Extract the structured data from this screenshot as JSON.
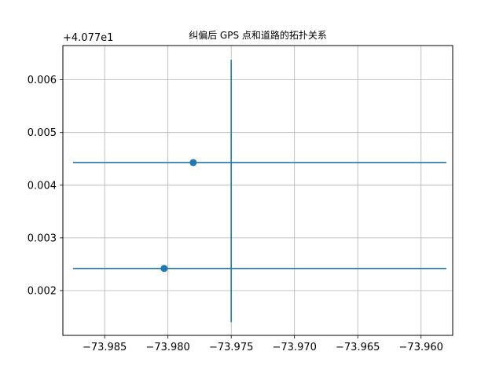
{
  "chart_data": {
    "type": "scatter",
    "title": "纠偏后 GPS 点和道路的拓扑关系",
    "y_offset_label": "+4.077e1",
    "y_offset": 40.77,
    "xlim": [
      -73.9883,
      -73.9575
    ],
    "ylim": [
      0.00115,
      0.00665
    ],
    "x_ticks": [
      -73.985,
      -73.98,
      -73.975,
      -73.97,
      -73.965,
      -73.96
    ],
    "x_tick_labels": [
      "−73.985",
      "−73.980",
      "−73.975",
      "−73.970",
      "−73.965",
      "−73.960"
    ],
    "y_ticks": [
      0.002,
      0.003,
      0.004,
      0.005,
      0.006
    ],
    "y_tick_labels": [
      "0.002",
      "0.003",
      "0.004",
      "0.005",
      "0.006"
    ],
    "grid": true,
    "color": "#1f77b4",
    "roads": [
      {
        "x": [
          -73.9875,
          -73.958
        ],
        "y": [
          0.00443,
          0.00443
        ]
      },
      {
        "x": [
          -73.9875,
          -73.958
        ],
        "y": [
          0.00242,
          0.00242
        ]
      },
      {
        "x": [
          -73.975,
          -73.975
        ],
        "y": [
          0.00638,
          0.0014
        ]
      }
    ],
    "points": [
      {
        "x": -73.978,
        "y": 0.00443
      },
      {
        "x": -73.9803,
        "y": 0.00242
      }
    ]
  }
}
